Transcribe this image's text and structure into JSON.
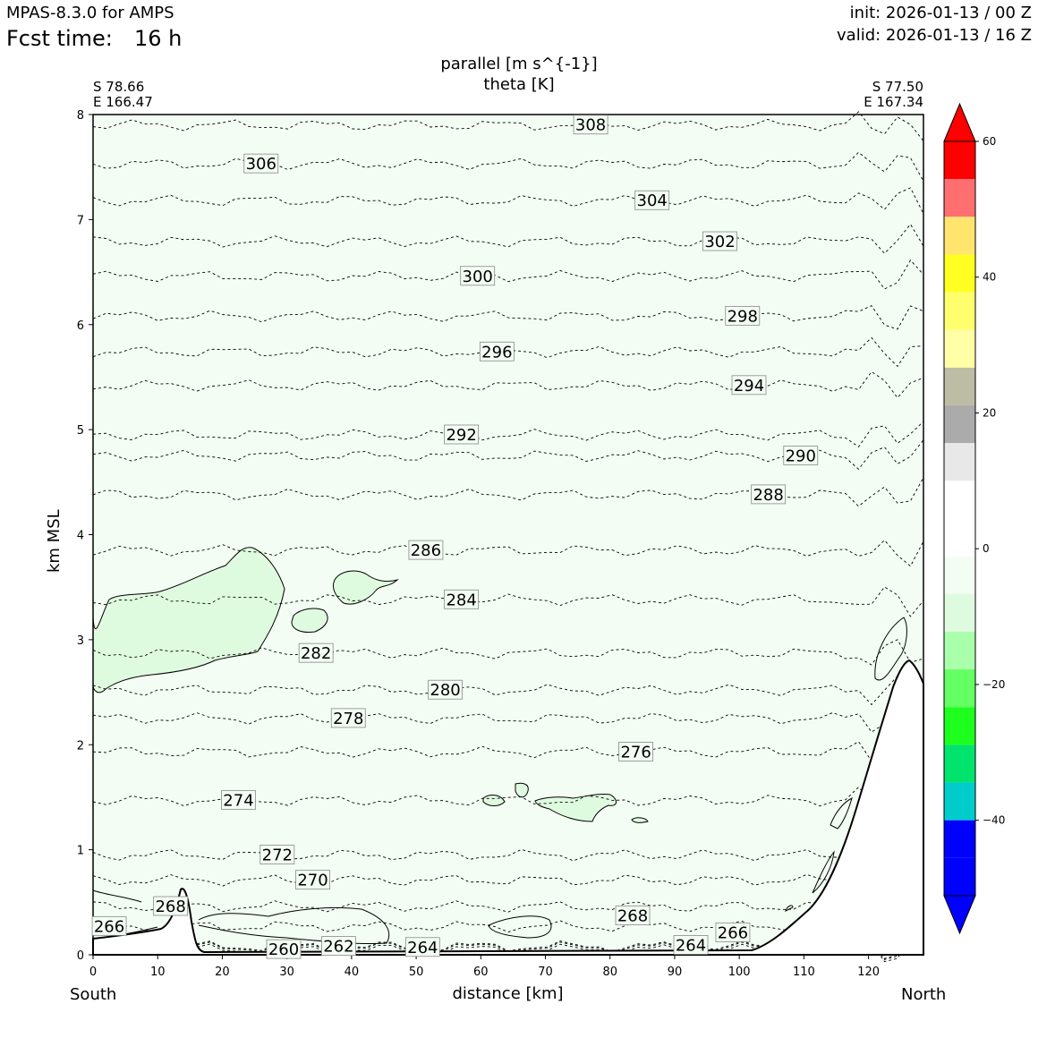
{
  "header": {
    "model": "MPAS-8.3.0 for AMPS",
    "fcst_label": "Fcst time:",
    "fcst_value": "16 h",
    "init": "init: 2026-01-13 / 00 Z",
    "valid": "valid: 2026-01-13 / 16 Z"
  },
  "chart_data": {
    "type": "contour",
    "title_line1": "parallel [m s^{-1}]",
    "title_line2": "theta [K]",
    "xlabel": "distance [km]",
    "ylabel": "km MSL",
    "xlim": [
      0,
      128.5
    ],
    "ylim": [
      0,
      8
    ],
    "xticks": [
      "0",
      "10",
      "20",
      "30",
      "40",
      "50",
      "60",
      "70",
      "80",
      "90",
      "100",
      "110",
      "120"
    ],
    "yticks": [
      "0",
      "1",
      "2",
      "3",
      "4",
      "5",
      "6",
      "7",
      "8"
    ],
    "left_end": {
      "label": "South",
      "lat": "S 78.66",
      "lon": "E 166.47"
    },
    "right_end": {
      "label": "North",
      "lat": "S 77.50",
      "lon": "E 167.34"
    },
    "theta_contour_labels": [
      {
        "text": "308",
        "x": 77,
        "y": 7.9
      },
      {
        "text": "306",
        "x": 26,
        "y": 7.53
      },
      {
        "text": "304",
        "x": 86.5,
        "y": 7.18
      },
      {
        "text": "302",
        "x": 97,
        "y": 6.79
      },
      {
        "text": "300",
        "x": 59.5,
        "y": 6.46
      },
      {
        "text": "298",
        "x": 100.5,
        "y": 6.08
      },
      {
        "text": "296",
        "x": 62.5,
        "y": 5.74
      },
      {
        "text": "294",
        "x": 101.5,
        "y": 5.42
      },
      {
        "text": "292",
        "x": 57,
        "y": 4.95
      },
      {
        "text": "290",
        "x": 109.5,
        "y": 4.75
      },
      {
        "text": "288",
        "x": 104.5,
        "y": 4.38
      },
      {
        "text": "286",
        "x": 51.5,
        "y": 3.85
      },
      {
        "text": "284",
        "x": 57,
        "y": 3.38
      },
      {
        "text": "282",
        "x": 34.5,
        "y": 2.87
      },
      {
        "text": "280",
        "x": 54.5,
        "y": 2.52
      },
      {
        "text": "278",
        "x": 39.5,
        "y": 2.25
      },
      {
        "text": "276",
        "x": 84,
        "y": 1.93
      },
      {
        "text": "274",
        "x": 22.5,
        "y": 1.47
      },
      {
        "text": "272",
        "x": 28.5,
        "y": 0.95
      },
      {
        "text": "270",
        "x": 34,
        "y": 0.71
      },
      {
        "text": "268",
        "x": 12,
        "y": 0.46
      },
      {
        "text": "268",
        "x": 83.5,
        "y": 0.37
      },
      {
        "text": "266",
        "x": 2.5,
        "y": 0.27
      },
      {
        "text": "266",
        "x": 99,
        "y": 0.21
      },
      {
        "text": "264",
        "x": 51,
        "y": 0.07
      },
      {
        "text": "264",
        "x": 92.5,
        "y": 0.09
      },
      {
        "text": "262",
        "x": 38,
        "y": 0.08
      },
      {
        "text": "260",
        "x": 29.5,
        "y": 0.05
      }
    ],
    "colorbar": {
      "ticks": [
        "60",
        "40",
        "20",
        "0",
        "−20",
        "−40"
      ],
      "colors": [
        "#ff0000",
        "#ff6f6f",
        "#ffe46e",
        "#ffff22",
        "#ffff6e",
        "#ffffa6",
        "#bdbda6",
        "#ababab",
        "#e8e8e8",
        "#ffffff",
        "#ffffff",
        "#f3fdf3",
        "#dffbdf",
        "#aaffaa",
        "#63ff63",
        "#1eff1e",
        "#00e46e",
        "#00cccc",
        "#0000ff",
        "#0000ff"
      ],
      "over_color": "#ff0000",
      "under_color": "#0000ff"
    },
    "background_fill": "#f3fdf3",
    "anomaly_fill": "#dffbdf"
  }
}
